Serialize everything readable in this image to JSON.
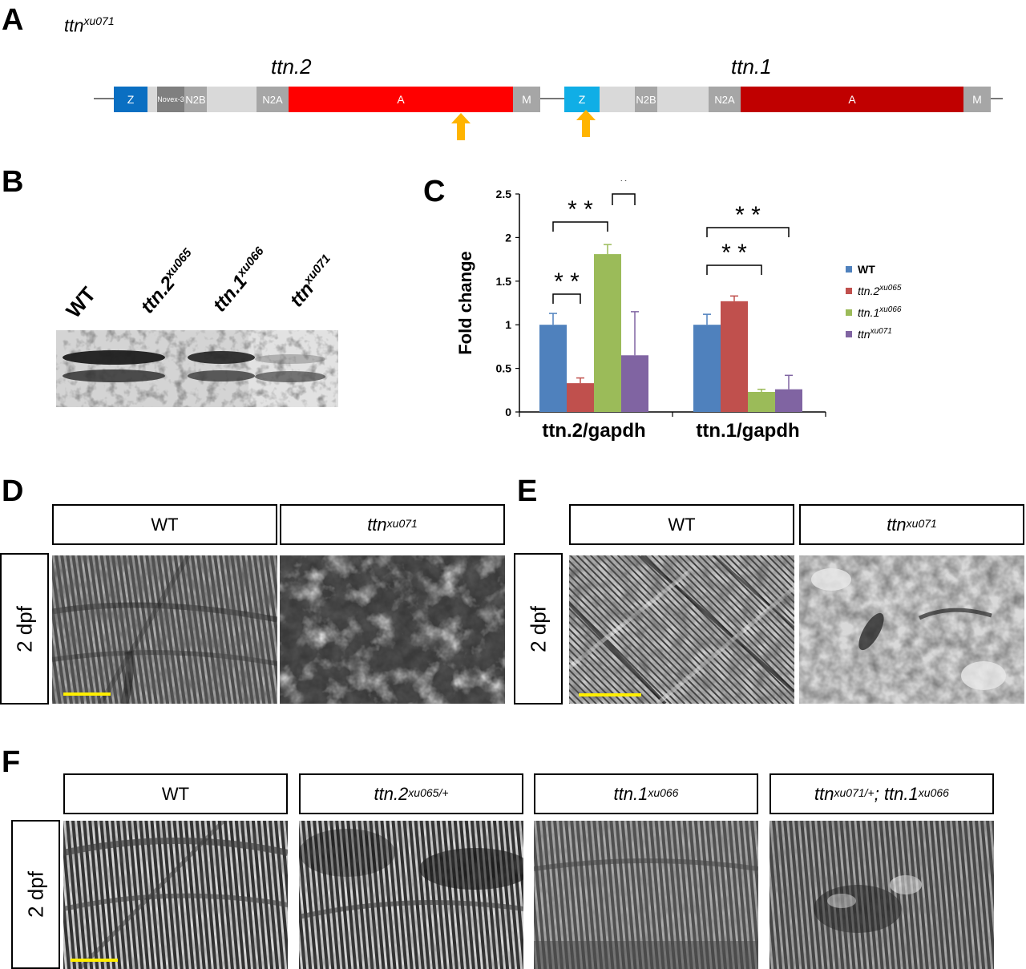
{
  "panels": {
    "a": "A",
    "b": "B",
    "c": "C",
    "d": "D",
    "e": "E",
    "f": "F"
  },
  "panel_a": {
    "allele": "ttn",
    "allele_sup": "xu071",
    "gene2": "ttn.2",
    "gene1": "ttn.1",
    "gene2_domains": [
      "Z",
      "Novex-3",
      "N2B",
      "N2A",
      "A",
      "M"
    ],
    "gene1_domains": [
      "Z",
      "N2B",
      "N2A",
      "A",
      "M"
    ],
    "colors": {
      "z2": "#0a6fc2",
      "z1": "#10aee6",
      "a2": "#ff0000",
      "a1": "#c00000",
      "grey": "#a6a6a6",
      "light": "#d9d9d9",
      "arrow": "#ffb400"
    }
  },
  "panel_b": {
    "labels": [
      {
        "base": "WT",
        "sup": ""
      },
      {
        "base": "ttn.2",
        "sup": "xu065"
      },
      {
        "base": "ttn.1",
        "sup": "xu066"
      },
      {
        "base": "ttn",
        "sup": "xu071"
      }
    ]
  },
  "chart_data": {
    "type": "bar",
    "ylabel": "Fold change",
    "categories": [
      "ttn.2/gapdh",
      "ttn.1/gapdh"
    ],
    "ylim": [
      0,
      2.5
    ],
    "yticks": [
      "0",
      "0.5",
      "1",
      "1.5",
      "2",
      "2.5"
    ],
    "series": [
      {
        "name": "WT",
        "sup": "",
        "color": "#4f81bd",
        "values": [
          1.0,
          1.0
        ],
        "errors": [
          0.13,
          0.12
        ]
      },
      {
        "name": "ttn.2",
        "sup": "xu065",
        "color": "#c0504d",
        "values": [
          0.33,
          1.27
        ],
        "errors": [
          0.06,
          0.06
        ]
      },
      {
        "name": "ttn.1",
        "sup": "xu066",
        "color": "#9bbb59",
        "values": [
          1.81,
          0.23
        ],
        "errors": [
          0.11,
          0.03
        ]
      },
      {
        "name": "ttn",
        "sup": "xu071",
        "color": "#8064a2",
        "values": [
          0.65,
          0.26
        ],
        "errors": [
          0.5,
          0.16
        ]
      }
    ],
    "significance": [
      "* *",
      "* *",
      "*",
      "* *",
      "* *"
    ]
  },
  "panel_d": {
    "left": "WT",
    "right_base": "ttn",
    "right_sup": "xu071",
    "age": "2 dpf"
  },
  "panel_e": {
    "left": "WT",
    "right_base": "ttn",
    "right_sup": "xu071",
    "age": "2 dpf"
  },
  "panel_f": {
    "labels": [
      {
        "base": "WT",
        "sup": "",
        "extra": "",
        "extra_sup": ""
      },
      {
        "base": "ttn.2",
        "sup": "xu065/+",
        "extra": "",
        "extra_sup": ""
      },
      {
        "base": "ttn.1",
        "sup": "xu066",
        "extra": "",
        "extra_sup": ""
      },
      {
        "base": "ttn",
        "sup": "xu071/+",
        "extra": "; ttn.1",
        "extra_sup": "xu066"
      }
    ],
    "age": "2 dpf"
  }
}
